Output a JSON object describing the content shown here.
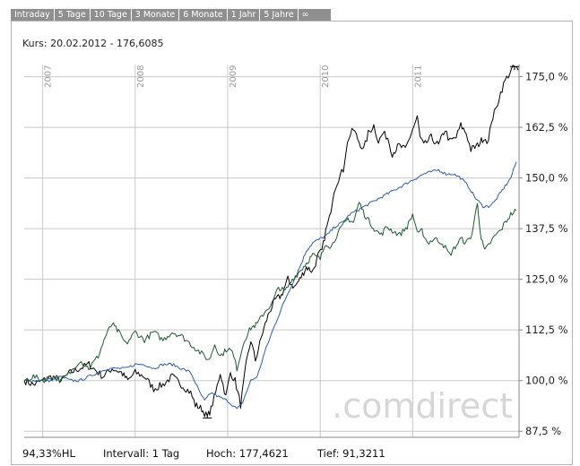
{
  "tabs": [
    "Intraday",
    "5 Tage",
    "10 Tage",
    "3 Monate",
    "6 Monate",
    "1 Jahr",
    "5 Jahre",
    "∞"
  ],
  "header": {
    "kurs": "Kurs: 20.02.2012 - 176,6085"
  },
  "watermark": ".comdirect",
  "footer": {
    "hl": "94,33%HL",
    "intervall": "Intervall: 1 Tag",
    "hoch": "Hoch: 177,4621",
    "tief": "Tief: 91,3211"
  },
  "colors": {
    "primary": "#000000",
    "series2": "#2d5ea8",
    "series3": "#1e5a2d",
    "grid": "#c8c8c8",
    "tab_bg": "#8f8f8f"
  },
  "chart_data": {
    "type": "line",
    "x_axis": {
      "ticks": [
        "2007",
        "2008",
        "2009",
        "2010",
        "2011"
      ],
      "range": [
        2006.8,
        2012.15
      ]
    },
    "y_axis": {
      "ticks": [
        "87,5 %",
        "100,0 %",
        "112,5 %",
        "125,0 %",
        "137,5 %",
        "150,0 %",
        "162,5 %",
        "175,0 %"
      ],
      "range": [
        86,
        178
      ],
      "unit": "%"
    },
    "series": [
      {
        "color": "#000000",
        "points": [
          [
            2006.8,
            100
          ],
          [
            2006.9,
            99
          ],
          [
            2007.0,
            100
          ],
          [
            2007.1,
            101
          ],
          [
            2007.2,
            100
          ],
          [
            2007.3,
            102
          ],
          [
            2007.4,
            103
          ],
          [
            2007.5,
            104
          ],
          [
            2007.55,
            103
          ],
          [
            2007.65,
            101
          ],
          [
            2007.75,
            103
          ],
          [
            2007.85,
            102
          ],
          [
            2007.92,
            100
          ],
          [
            2008.0,
            102
          ],
          [
            2008.1,
            101
          ],
          [
            2008.2,
            98
          ],
          [
            2008.3,
            99
          ],
          [
            2008.4,
            101
          ],
          [
            2008.5,
            99
          ],
          [
            2008.6,
            97
          ],
          [
            2008.65,
            94
          ],
          [
            2008.72,
            93
          ],
          [
            2008.78,
            91
          ],
          [
            2008.82,
            93
          ],
          [
            2008.87,
            97
          ],
          [
            2008.92,
            102
          ],
          [
            2008.98,
            96
          ],
          [
            2009.03,
            102
          ],
          [
            2009.08,
            100
          ],
          [
            2009.14,
            94
          ],
          [
            2009.2,
            104
          ],
          [
            2009.25,
            110
          ],
          [
            2009.3,
            105
          ],
          [
            2009.38,
            112
          ],
          [
            2009.45,
            117
          ],
          [
            2009.52,
            120
          ],
          [
            2009.58,
            121
          ],
          [
            2009.65,
            125
          ],
          [
            2009.72,
            123
          ],
          [
            2009.78,
            125
          ],
          [
            2009.85,
            128
          ],
          [
            2009.92,
            127
          ],
          [
            2009.98,
            131
          ],
          [
            2010.02,
            132
          ],
          [
            2010.06,
            137
          ],
          [
            2010.1,
            140
          ],
          [
            2010.15,
            147
          ],
          [
            2010.2,
            150
          ],
          [
            2010.25,
            152
          ],
          [
            2010.28,
            157
          ],
          [
            2010.31,
            160
          ],
          [
            2010.36,
            162
          ],
          [
            2010.42,
            159
          ],
          [
            2010.47,
            157
          ],
          [
            2010.52,
            161
          ],
          [
            2010.58,
            163
          ],
          [
            2010.63,
            159
          ],
          [
            2010.68,
            161
          ],
          [
            2010.73,
            160
          ],
          [
            2010.78,
            156
          ],
          [
            2010.85,
            158
          ],
          [
            2010.92,
            157
          ],
          [
            2011.0,
            162
          ],
          [
            2011.05,
            165
          ],
          [
            2011.08,
            160
          ],
          [
            2011.12,
            158
          ],
          [
            2011.2,
            160
          ],
          [
            2011.28,
            158
          ],
          [
            2011.35,
            162
          ],
          [
            2011.4,
            159
          ],
          [
            2011.47,
            160
          ],
          [
            2011.52,
            163
          ],
          [
            2011.58,
            161
          ],
          [
            2011.63,
            157
          ],
          [
            2011.7,
            158
          ],
          [
            2011.77,
            160
          ],
          [
            2011.82,
            159
          ],
          [
            2011.85,
            164
          ],
          [
            2011.9,
            167
          ],
          [
            2011.95,
            171
          ],
          [
            2012.0,
            174
          ],
          [
            2012.05,
            176
          ],
          [
            2012.1,
            177.5
          ],
          [
            2012.14,
            176.6
          ]
        ]
      },
      {
        "color": "#2d5ea8",
        "points": [
          [
            2006.8,
            100
          ],
          [
            2006.9,
            100
          ],
          [
            2007.0,
            100
          ],
          [
            2007.1,
            100
          ],
          [
            2007.2,
            101
          ],
          [
            2007.3,
            100
          ],
          [
            2007.4,
            100
          ],
          [
            2007.5,
            101
          ],
          [
            2007.6,
            102
          ],
          [
            2007.7,
            103
          ],
          [
            2007.8,
            103
          ],
          [
            2007.9,
            103
          ],
          [
            2008.0,
            104
          ],
          [
            2008.1,
            104
          ],
          [
            2008.2,
            103
          ],
          [
            2008.3,
            104
          ],
          [
            2008.4,
            104
          ],
          [
            2008.5,
            103
          ],
          [
            2008.6,
            102
          ],
          [
            2008.7,
            97
          ],
          [
            2008.75,
            95
          ],
          [
            2008.82,
            97
          ],
          [
            2008.9,
            96
          ],
          [
            2009.0,
            95
          ],
          [
            2009.05,
            94
          ],
          [
            2009.1,
            93
          ],
          [
            2009.15,
            94
          ],
          [
            2009.2,
            97
          ],
          [
            2009.25,
            100
          ],
          [
            2009.32,
            101
          ],
          [
            2009.4,
            107
          ],
          [
            2009.48,
            112
          ],
          [
            2009.55,
            116
          ],
          [
            2009.62,
            120
          ],
          [
            2009.7,
            124
          ],
          [
            2009.78,
            128
          ],
          [
            2009.85,
            132
          ],
          [
            2009.92,
            134
          ],
          [
            2010.0,
            135
          ],
          [
            2010.08,
            136
          ],
          [
            2010.16,
            138
          ],
          [
            2010.24,
            139
          ],
          [
            2010.32,
            141
          ],
          [
            2010.4,
            142
          ],
          [
            2010.48,
            143
          ],
          [
            2010.56,
            144
          ],
          [
            2010.64,
            145
          ],
          [
            2010.72,
            146
          ],
          [
            2010.8,
            147
          ],
          [
            2010.88,
            148
          ],
          [
            2010.96,
            149
          ],
          [
            2011.04,
            150
          ],
          [
            2011.12,
            151
          ],
          [
            2011.2,
            151.5
          ],
          [
            2011.28,
            152
          ],
          [
            2011.36,
            151
          ],
          [
            2011.44,
            151
          ],
          [
            2011.52,
            150
          ],
          [
            2011.6,
            148
          ],
          [
            2011.68,
            145
          ],
          [
            2011.76,
            143
          ],
          [
            2011.82,
            143
          ],
          [
            2011.88,
            144
          ],
          [
            2011.94,
            146
          ],
          [
            2012.0,
            148
          ],
          [
            2012.06,
            150
          ],
          [
            2012.12,
            154
          ]
        ]
      },
      {
        "color": "#1e5a2d",
        "points": [
          [
            2006.8,
            100
          ],
          [
            2006.9,
            101
          ],
          [
            2007.0,
            100
          ],
          [
            2007.1,
            101
          ],
          [
            2007.2,
            100
          ],
          [
            2007.3,
            102
          ],
          [
            2007.4,
            105
          ],
          [
            2007.5,
            103
          ],
          [
            2007.6,
            106
          ],
          [
            2007.68,
            111
          ],
          [
            2007.75,
            114
          ],
          [
            2007.82,
            112
          ],
          [
            2007.9,
            109
          ],
          [
            2008.0,
            112
          ],
          [
            2008.1,
            110
          ],
          [
            2008.2,
            112
          ],
          [
            2008.3,
            110
          ],
          [
            2008.4,
            112
          ],
          [
            2008.5,
            111
          ],
          [
            2008.6,
            109
          ],
          [
            2008.7,
            107
          ],
          [
            2008.8,
            105
          ],
          [
            2008.86,
            109
          ],
          [
            2008.92,
            106
          ],
          [
            2009.0,
            108
          ],
          [
            2009.05,
            107
          ],
          [
            2009.1,
            103
          ],
          [
            2009.18,
            110
          ],
          [
            2009.25,
            113
          ],
          [
            2009.32,
            114
          ],
          [
            2009.4,
            117
          ],
          [
            2009.48,
            119
          ],
          [
            2009.55,
            123
          ],
          [
            2009.62,
            122
          ],
          [
            2009.7,
            125
          ],
          [
            2009.78,
            127
          ],
          [
            2009.85,
            129
          ],
          [
            2009.92,
            131
          ],
          [
            2010.0,
            130
          ],
          [
            2010.06,
            134
          ],
          [
            2010.12,
            133
          ],
          [
            2010.18,
            136
          ],
          [
            2010.24,
            138
          ],
          [
            2010.3,
            140
          ],
          [
            2010.36,
            139
          ],
          [
            2010.42,
            144
          ],
          [
            2010.48,
            141
          ],
          [
            2010.54,
            139
          ],
          [
            2010.6,
            137
          ],
          [
            2010.66,
            136
          ],
          [
            2010.72,
            138
          ],
          [
            2010.78,
            137
          ],
          [
            2010.86,
            136
          ],
          [
            2010.94,
            138
          ],
          [
            2011.0,
            141
          ],
          [
            2011.06,
            136
          ],
          [
            2011.1,
            137
          ],
          [
            2011.16,
            134
          ],
          [
            2011.24,
            135
          ],
          [
            2011.32,
            134
          ],
          [
            2011.4,
            131
          ],
          [
            2011.46,
            133
          ],
          [
            2011.52,
            135
          ],
          [
            2011.58,
            134
          ],
          [
            2011.64,
            136
          ],
          [
            2011.7,
            144
          ],
          [
            2011.74,
            135
          ],
          [
            2011.78,
            132
          ],
          [
            2011.84,
            134
          ],
          [
            2011.9,
            136
          ],
          [
            2011.95,
            137
          ],
          [
            2012.0,
            139
          ],
          [
            2012.06,
            141
          ],
          [
            2012.12,
            142
          ]
        ]
      }
    ]
  }
}
